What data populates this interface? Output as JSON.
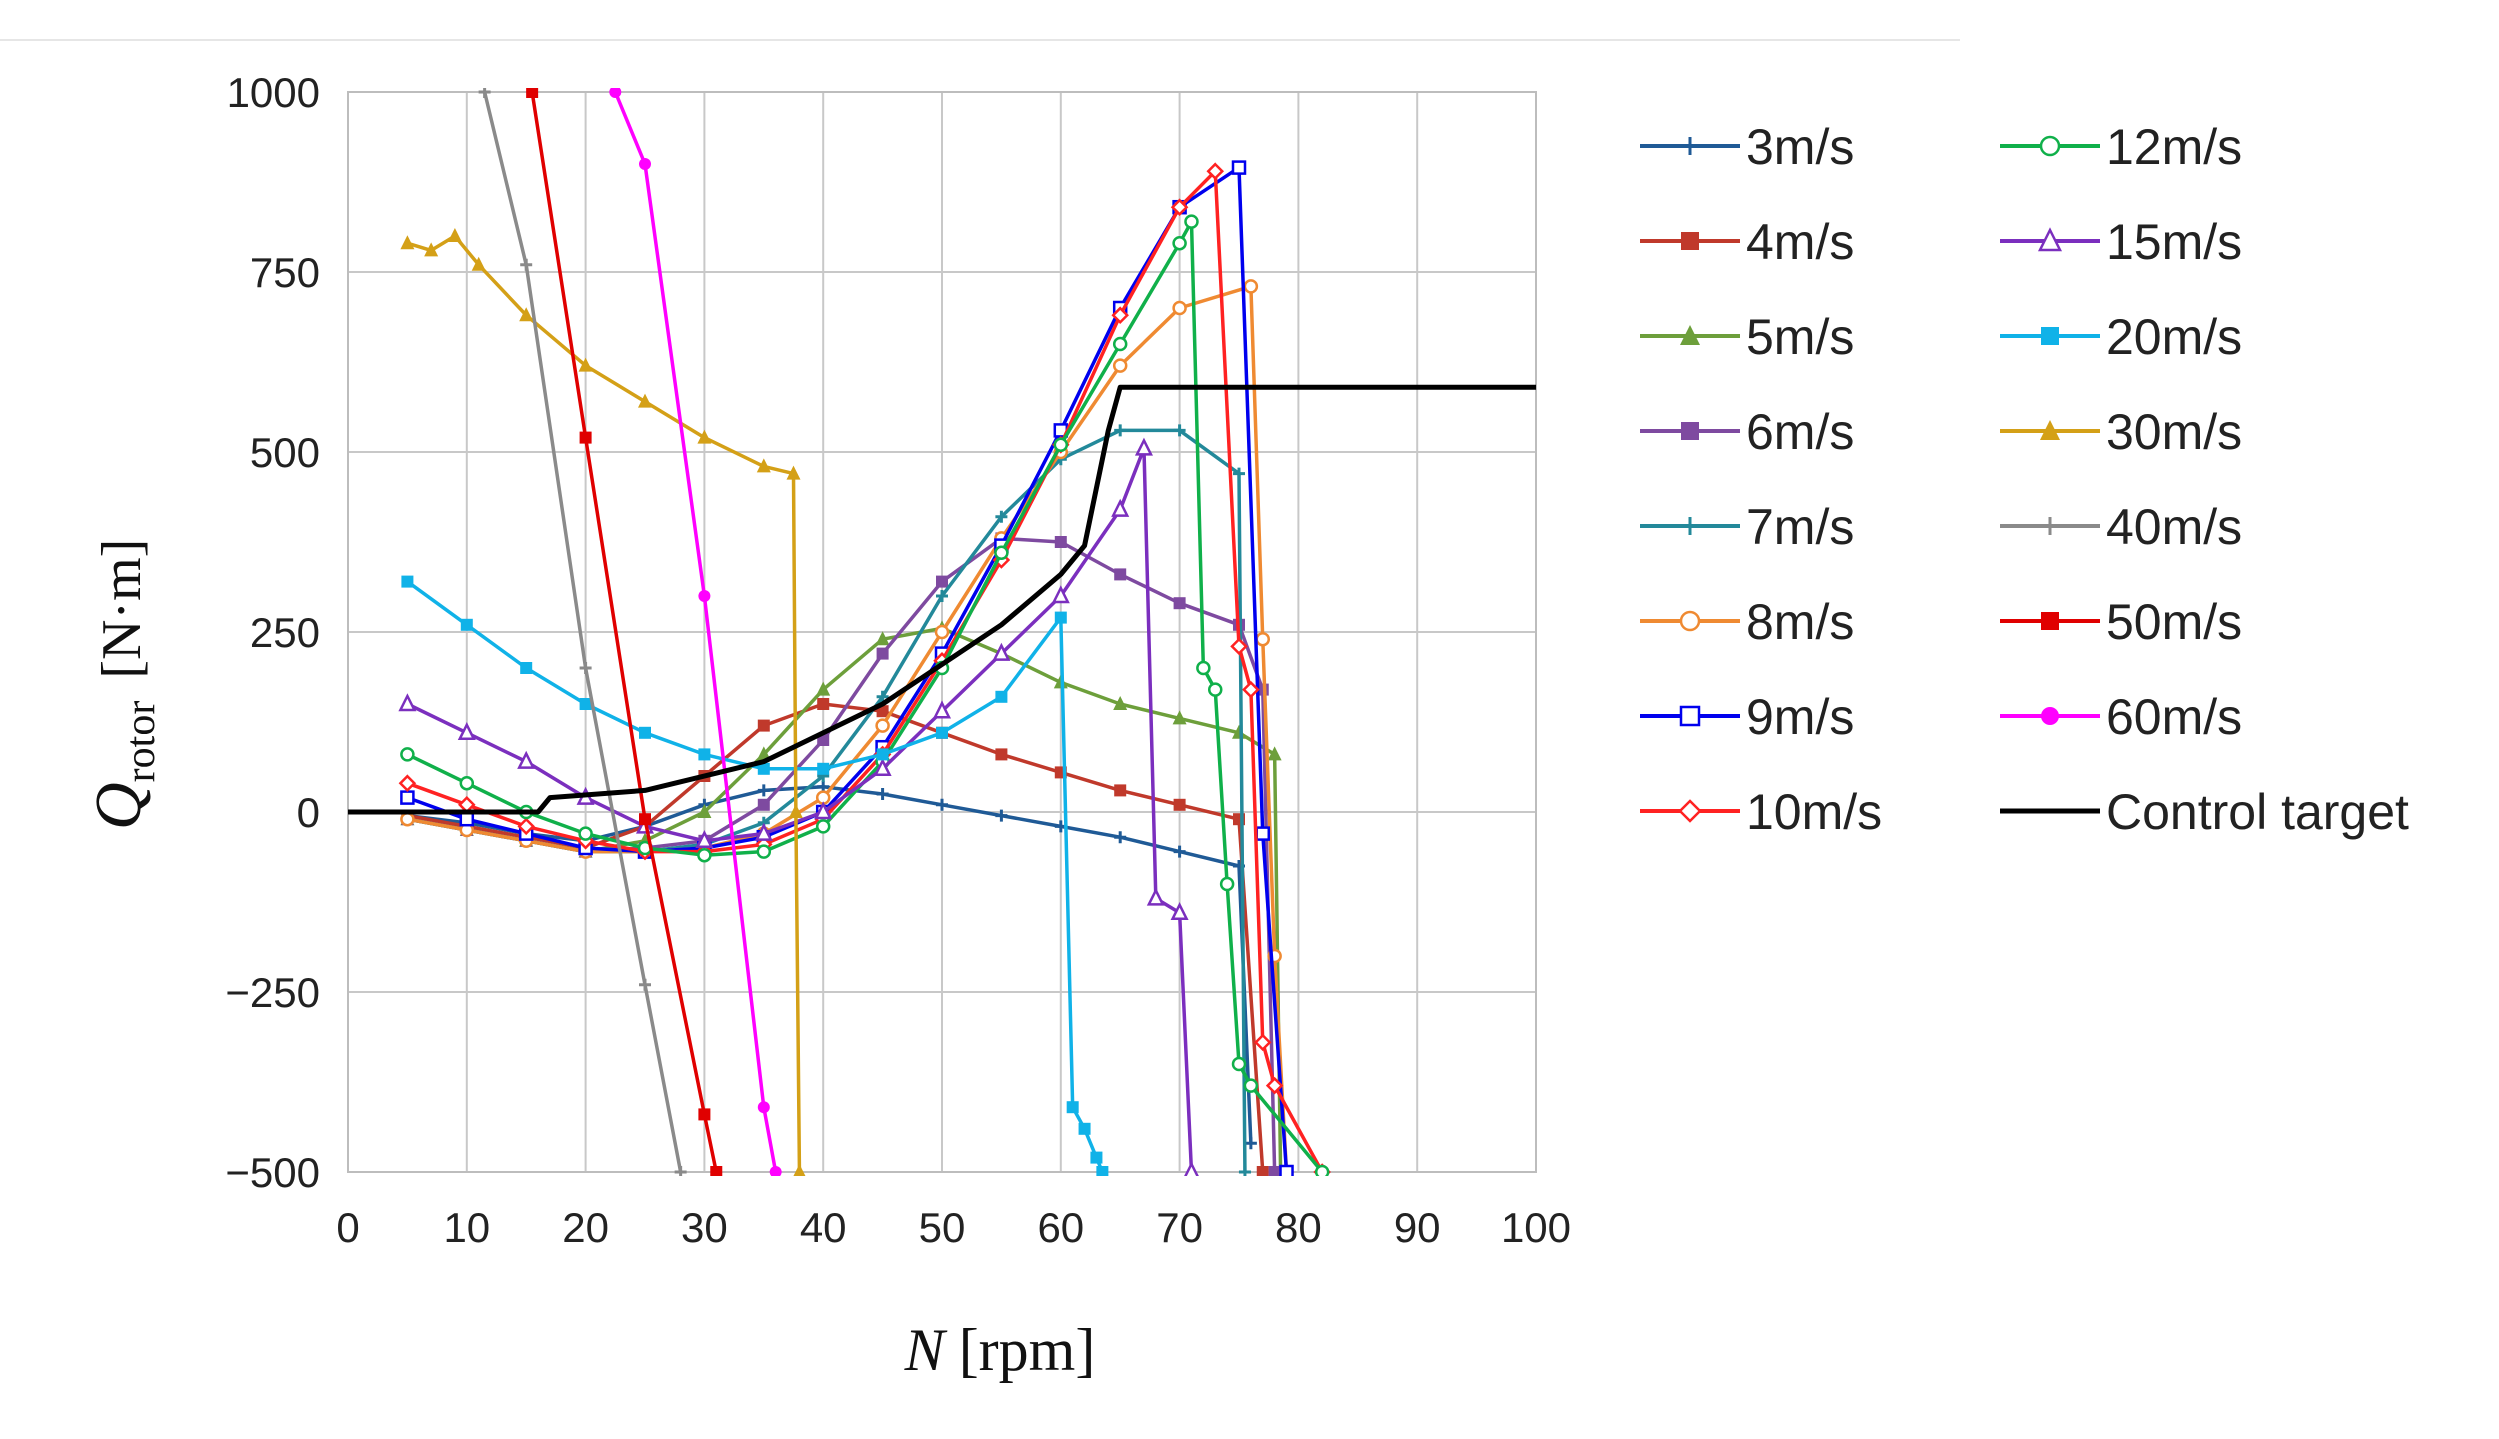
{
  "chart_data": {
    "type": "line",
    "xlabel": "N",
    "xlabel_unit": "[rpm]",
    "ylabel": "Q",
    "ylabel_sub": "rotor",
    "ylabel_unit": "[N·m]",
    "xlim": [
      0,
      100
    ],
    "ylim": [
      -500,
      1000
    ],
    "xticks": [
      0,
      10,
      20,
      30,
      40,
      50,
      60,
      70,
      80,
      90,
      100
    ],
    "yticks": [
      -500,
      -250,
      0,
      250,
      500,
      750,
      1000
    ],
    "ytick_labels": [
      "−500",
      "−250",
      "0",
      "250",
      "500",
      "750",
      "1000"
    ],
    "grid": true,
    "legend_position": "right",
    "series": [
      {
        "name": "3m/s",
        "color": "#1f5a96",
        "marker": "plus",
        "x": [
          5,
          10,
          15,
          20,
          25,
          30,
          35,
          40,
          45,
          50,
          55,
          60,
          65,
          70,
          75,
          76
        ],
        "y": [
          -5,
          -15,
          -30,
          -40,
          -20,
          10,
          30,
          35,
          25,
          10,
          -5,
          -20,
          -35,
          -55,
          -75,
          -460
        ]
      },
      {
        "name": "4m/s",
        "color": "#c0392b",
        "marker": "square",
        "x": [
          5,
          10,
          15,
          20,
          25,
          30,
          35,
          40,
          45,
          50,
          55,
          60,
          65,
          70,
          75,
          77
        ],
        "y": [
          -5,
          -20,
          -35,
          -50,
          -20,
          50,
          120,
          150,
          140,
          110,
          80,
          55,
          30,
          10,
          -10,
          -500
        ]
      },
      {
        "name": "5m/s",
        "color": "#6d9f3b",
        "marker": "triangle",
        "x": [
          5,
          10,
          15,
          20,
          25,
          30,
          35,
          40,
          45,
          50,
          55,
          60,
          65,
          70,
          75,
          78,
          78.5
        ],
        "y": [
          -10,
          -25,
          -40,
          -55,
          -40,
          0,
          80,
          170,
          240,
          255,
          220,
          180,
          150,
          130,
          110,
          80,
          -500
        ]
      },
      {
        "name": "6m/s",
        "color": "#7e4aa0",
        "marker": "square",
        "x": [
          5,
          10,
          15,
          20,
          25,
          30,
          35,
          40,
          45,
          50,
          55,
          60,
          65,
          70,
          75,
          77,
          78
        ],
        "y": [
          -10,
          -25,
          -40,
          -55,
          -50,
          -40,
          10,
          100,
          220,
          320,
          380,
          375,
          330,
          290,
          260,
          170,
          -500
        ]
      },
      {
        "name": "7m/s",
        "color": "#23899a",
        "marker": "plus",
        "x": [
          5,
          10,
          15,
          20,
          25,
          30,
          35,
          40,
          45,
          50,
          55,
          60,
          65,
          70,
          75,
          75.5
        ],
        "y": [
          -10,
          -25,
          -40,
          -55,
          -55,
          -45,
          -15,
          50,
          160,
          300,
          410,
          490,
          530,
          530,
          470,
          -500
        ]
      },
      {
        "name": "8m/s",
        "color": "#ef8a32",
        "marker": "circle-open",
        "x": [
          5,
          10,
          15,
          20,
          25,
          30,
          35,
          40,
          45,
          50,
          55,
          60,
          65,
          70,
          76,
          77,
          78,
          79
        ],
        "y": [
          -10,
          -25,
          -40,
          -55,
          -55,
          -50,
          -30,
          20,
          120,
          250,
          380,
          500,
          620,
          700,
          730,
          240,
          -200,
          -500
        ]
      },
      {
        "name": "9m/s",
        "color": "#0000ee",
        "marker": "square-open",
        "x": [
          5,
          10,
          15,
          20,
          25,
          30,
          35,
          40,
          45,
          50,
          55,
          60,
          65,
          70,
          75,
          77,
          79
        ],
        "y": [
          20,
          -10,
          -30,
          -50,
          -55,
          -50,
          -35,
          0,
          90,
          220,
          370,
          530,
          700,
          840,
          895,
          -30,
          -500
        ]
      },
      {
        "name": "10m/s",
        "color": "#ff2222",
        "marker": "diamond-open",
        "x": [
          5,
          10,
          15,
          20,
          25,
          30,
          35,
          40,
          45,
          50,
          55,
          60,
          65,
          70,
          73,
          75,
          76,
          77,
          78,
          82
        ],
        "y": [
          40,
          10,
          -20,
          -40,
          -55,
          -55,
          -45,
          -10,
          80,
          210,
          350,
          510,
          690,
          840,
          890,
          230,
          170,
          -320,
          -380,
          -500
        ]
      },
      {
        "name": "12m/s",
        "color": "#10b04a",
        "marker": "circle-open",
        "x": [
          5,
          10,
          15,
          20,
          25,
          30,
          35,
          40,
          45,
          50,
          55,
          60,
          65,
          70,
          71,
          72,
          73,
          74,
          75,
          76,
          82
        ],
        "y": [
          80,
          40,
          0,
          -30,
          -50,
          -60,
          -55,
          -20,
          70,
          200,
          360,
          510,
          650,
          790,
          820,
          200,
          170,
          -100,
          -350,
          -380,
          -500
        ]
      },
      {
        "name": "15m/s",
        "color": "#7b2fbe",
        "marker": "triangle-open",
        "x": [
          5,
          10,
          15,
          20,
          25,
          30,
          35,
          40,
          45,
          50,
          55,
          60,
          65,
          67,
          68,
          70,
          71
        ],
        "y": [
          150,
          110,
          70,
          20,
          -20,
          -40,
          -30,
          0,
          60,
          140,
          220,
          300,
          420,
          505,
          -120,
          -140,
          -500
        ]
      },
      {
        "name": "20m/s",
        "color": "#10b2e8",
        "marker": "square",
        "x": [
          5,
          10,
          15,
          20,
          25,
          30,
          35,
          40,
          45,
          50,
          55,
          60,
          61,
          62,
          63,
          63.5
        ],
        "y": [
          320,
          260,
          200,
          150,
          110,
          80,
          60,
          60,
          80,
          110,
          160,
          270,
          -410,
          -440,
          -480,
          -500
        ]
      },
      {
        "name": "30m/s",
        "color": "#d4a017",
        "marker": "triangle",
        "x": [
          5,
          7,
          9,
          11,
          15,
          20,
          25,
          30,
          35,
          37.5,
          37.7,
          38
        ],
        "y": [
          790,
          780,
          800,
          760,
          690,
          620,
          570,
          520,
          480,
          470,
          0,
          -500
        ]
      },
      {
        "name": "40m/s",
        "color": "#8a8a8a",
        "marker": "plus",
        "x": [
          11.5,
          15,
          20,
          25,
          28
        ],
        "y": [
          1000,
          760,
          200,
          -240,
          -500
        ]
      },
      {
        "name": "50m/s",
        "color": "#e00000",
        "marker": "square",
        "x": [
          15.5,
          20,
          25,
          30,
          31
        ],
        "y": [
          1000,
          520,
          -10,
          -420,
          -500
        ]
      },
      {
        "name": "60m/s",
        "color": "#ff00ff",
        "marker": "circle",
        "x": [
          22.5,
          25,
          30,
          35,
          36
        ],
        "y": [
          1000,
          900,
          300,
          -410,
          -500
        ]
      },
      {
        "name": "Control target",
        "color": "#000000",
        "marker": "none",
        "x": [
          0,
          16,
          17,
          25,
          35,
          45,
          55,
          60,
          62,
          64,
          65,
          100
        ],
        "y": [
          0,
          0,
          20,
          30,
          70,
          150,
          260,
          330,
          370,
          530,
          590,
          590
        ]
      }
    ]
  }
}
